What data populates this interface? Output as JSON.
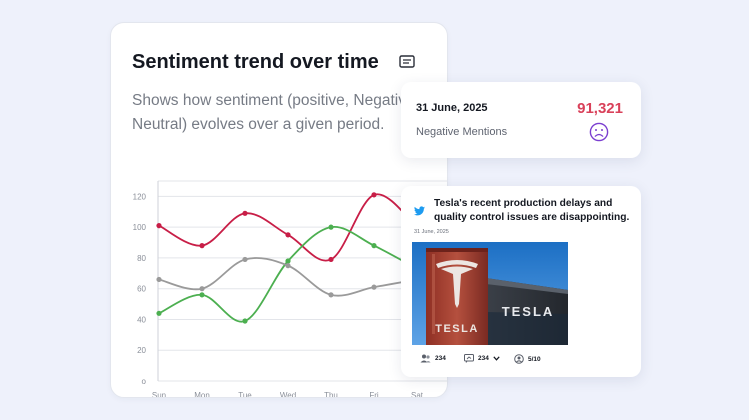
{
  "sentiment_card": {
    "title": "Sentiment trend over time",
    "description_line1": "Shows how sentiment (positive, Negative",
    "description_line2": "Neutral) evolves over a given period."
  },
  "chart_data": {
    "type": "line",
    "categories": [
      "Sun",
      "Mon",
      "Tue",
      "Wed",
      "Thu",
      "Fri",
      "Sat"
    ],
    "y_ticks": [
      "o",
      "20",
      "40",
      "60",
      "80",
      "100",
      "120"
    ],
    "ylim": [
      0,
      130
    ],
    "grid": true,
    "series": [
      {
        "color": "#c81e47",
        "values": [
          101,
          88,
          109,
          95,
          79,
          121,
          100
        ]
      },
      {
        "color": "#4caf50",
        "values": [
          44,
          56,
          39,
          78,
          100,
          88,
          73
        ]
      },
      {
        "color": "#9a9a9a",
        "values": [
          66,
          60,
          79,
          75,
          56,
          61,
          66
        ]
      }
    ]
  },
  "mentions_card": {
    "date": "31 June, 2025",
    "label": "Negative Mentions",
    "value": "91,321",
    "value_color": "#d9415a",
    "icon": "sad-face-icon"
  },
  "tweet_card": {
    "text": "Tesla's recent production delays and quality control issues are disappointing.",
    "date": "31 June, 2025",
    "image_sign_text": "TESLA",
    "stats": {
      "users": "234",
      "shares": "234",
      "score": "5/10"
    }
  }
}
